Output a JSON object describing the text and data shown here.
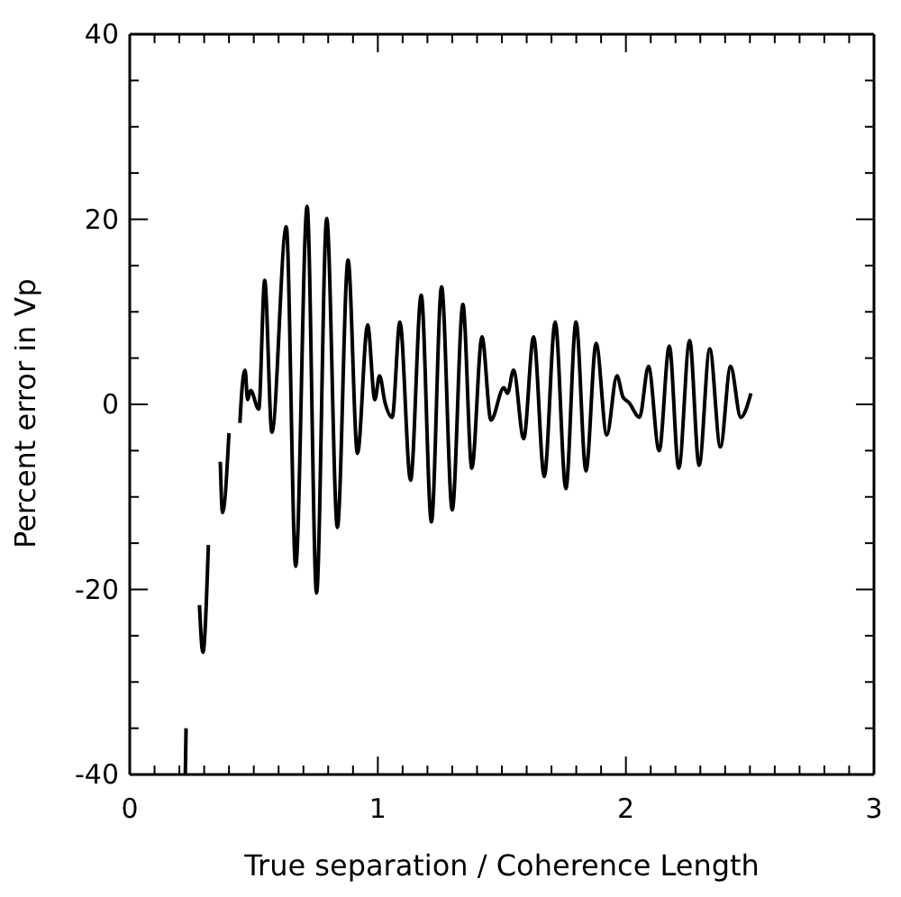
{
  "chart_data": {
    "type": "line",
    "xlabel": "True separation / Coherence Length",
    "ylabel": "Percent error in Vp",
    "x": [
      0.224,
      0.227,
      0.25,
      0.281,
      0.295,
      0.317,
      0.34,
      0.365,
      0.374,
      0.4,
      0.42,
      0.444,
      0.453,
      0.465,
      0.475,
      0.487,
      0.52,
      0.544,
      0.573,
      0.631,
      0.669,
      0.715,
      0.753,
      0.794,
      0.837,
      0.88,
      0.918,
      0.959,
      0.988,
      1.007,
      1.029,
      1.058,
      1.089,
      1.132,
      1.175,
      1.216,
      1.257,
      1.3,
      1.343,
      1.379,
      1.42,
      1.456,
      1.508,
      1.523,
      1.547,
      1.588,
      1.628,
      1.671,
      1.715,
      1.758,
      1.799,
      1.839,
      1.88,
      1.923,
      1.964,
      1.988,
      2.012,
      2.055,
      2.091,
      2.134,
      2.175,
      2.213,
      2.257,
      2.295,
      2.338,
      2.381,
      2.422,
      2.463,
      2.504
    ],
    "series": [
      {
        "color": "#000000",
        "values": [
          -40,
          -35,
          null,
          -21.7,
          -26.8,
          -15.2,
          null,
          -6.2,
          -11.7,
          -3.1,
          null,
          -2,
          1.8,
          3.7,
          0.5,
          1.5,
          -0.5,
          13.4,
          -3,
          19.2,
          -17.5,
          21.4,
          -20.4,
          20.1,
          -13.3,
          15.6,
          -5.3,
          8.6,
          0.5,
          3.1,
          0.2,
          -1.4,
          8.9,
          -8.2,
          11.8,
          -12.7,
          12.7,
          -11.4,
          10.8,
          -6.9,
          7.3,
          -1.7,
          1.8,
          1.2,
          3.7,
          -3.7,
          7.3,
          -7.8,
          8.9,
          -9.1,
          8.9,
          -7.2,
          6.6,
          -3.3,
          3.1,
          0.8,
          0.2,
          -1.4,
          4.1,
          -5,
          6.3,
          -6.9,
          6.9,
          -6.6,
          6,
          -4.6,
          4.1,
          -1.4,
          1.2
        ]
      }
    ],
    "xlim": [
      0,
      3
    ],
    "ylim": [
      -40,
      40
    ],
    "xticks": [
      0,
      {
        "value": 0.1,
        "label": null
      },
      {
        "value": 0.2,
        "label": null
      },
      {
        "value": 0.3,
        "label": null
      },
      {
        "value": 0.4,
        "label": null
      },
      {
        "value": 0.5,
        "label": null
      },
      {
        "value": 0.6,
        "label": null
      },
      {
        "value": 0.7,
        "label": null
      },
      {
        "value": 0.8,
        "label": null
      },
      {
        "value": 0.9,
        "label": null
      },
      1,
      {
        "value": 1.1,
        "label": null
      },
      {
        "value": 1.2,
        "label": null
      },
      {
        "value": 1.3,
        "label": null
      },
      {
        "value": 1.4,
        "label": null
      },
      {
        "value": 1.5,
        "label": null
      },
      {
        "value": 1.6,
        "label": null
      },
      {
        "value": 1.7,
        "label": null
      },
      {
        "value": 1.8,
        "label": null
      },
      {
        "value": 1.9,
        "label": null
      },
      2,
      {
        "value": 2.1,
        "label": null
      },
      {
        "value": 2.2,
        "label": null
      },
      {
        "value": 2.3,
        "label": null
      },
      {
        "value": 2.4,
        "label": null
      },
      {
        "value": 2.5,
        "label": null
      },
      {
        "value": 2.6,
        "label": null
      },
      {
        "value": 2.7,
        "label": null
      },
      {
        "value": 2.8,
        "label": null
      },
      {
        "value": 2.9,
        "label": null
      },
      3
    ],
    "yticks": [
      -40,
      {
        "value": -35,
        "label": null
      },
      {
        "value": -30,
        "label": null
      },
      {
        "value": -25,
        "label": null
      },
      -20,
      {
        "value": -15,
        "label": null
      },
      {
        "value": -10,
        "label": null
      },
      {
        "value": -5,
        "label": null
      },
      0,
      {
        "value": 5,
        "label": null
      },
      {
        "value": 10,
        "label": null
      },
      {
        "value": 15,
        "label": null
      },
      20,
      {
        "value": 25,
        "label": null
      },
      {
        "value": 30,
        "label": null
      },
      {
        "value": 35,
        "label": null
      },
      40
    ],
    "grid": false,
    "legend": false,
    "marker": "none",
    "line_style": "solid"
  }
}
